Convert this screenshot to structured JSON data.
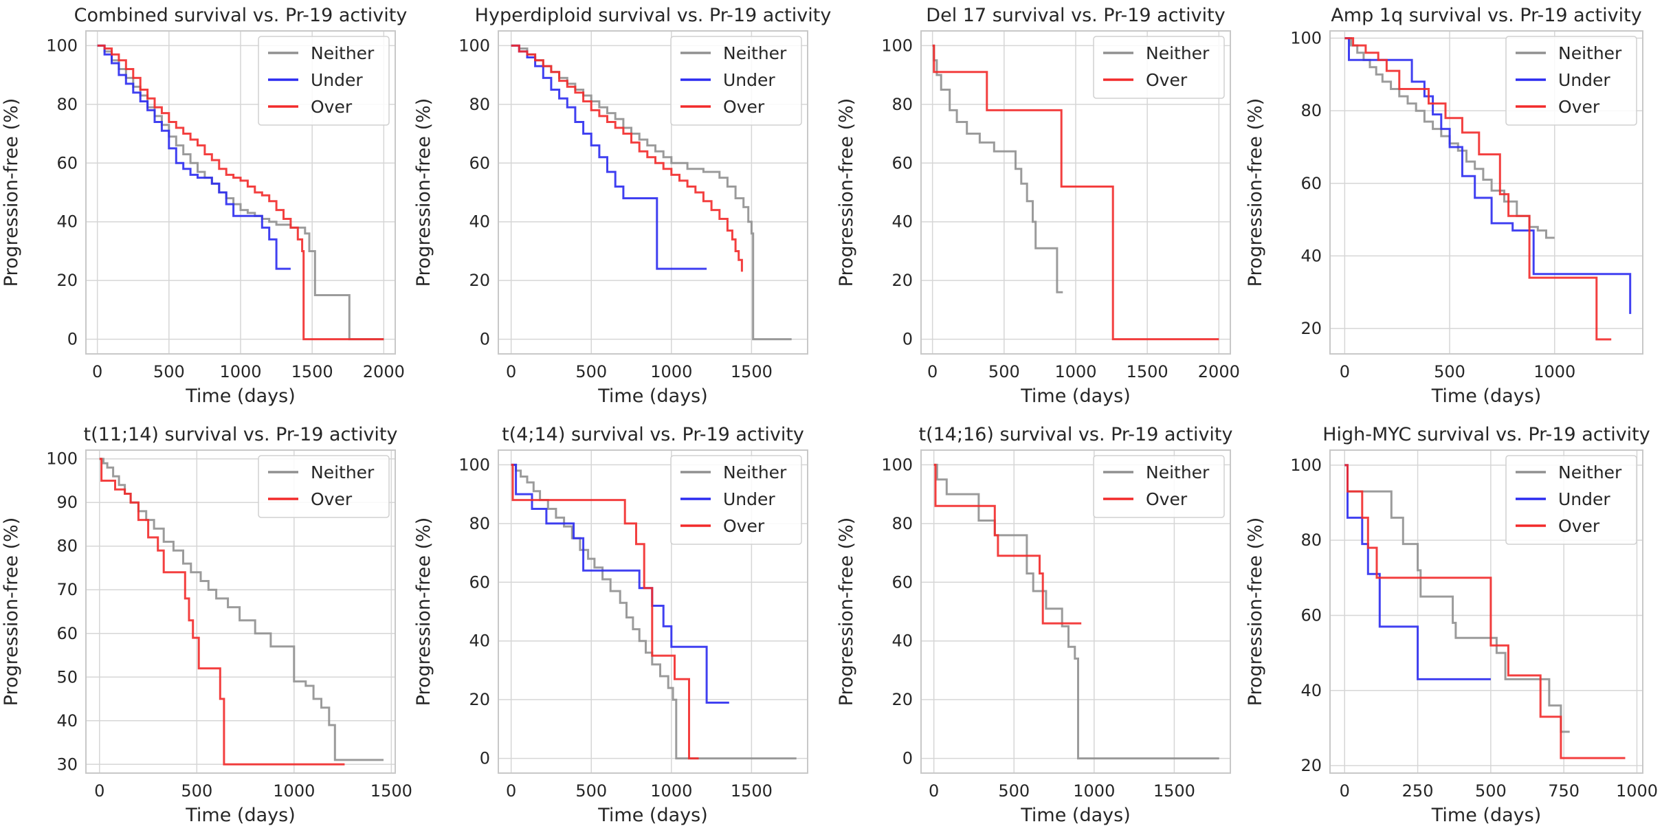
{
  "figure": {
    "colors": {
      "Neither": "#909090",
      "Under": "#2b2bf0",
      "Over": "#f22a2a",
      "grid": "#d6d6d6",
      "frame": "#c8c8c8"
    }
  },
  "chart_data": [
    {
      "type": "line",
      "title": "Combined survival vs. Pr-19 activity",
      "xlabel": "Time (days)",
      "ylabel": "Progression-free (%)",
      "xlim": [
        -80,
        2080
      ],
      "ylim": [
        -5,
        105
      ],
      "xticks": [
        0,
        500,
        1000,
        1500,
        2000
      ],
      "yticks": [
        0,
        20,
        40,
        60,
        80,
        100
      ],
      "legend": "top-right",
      "series": [
        {
          "name": "Neither",
          "x": [
            0,
            50,
            100,
            150,
            200,
            250,
            300,
            350,
            400,
            450,
            500,
            550,
            600,
            650,
            700,
            750,
            800,
            850,
            900,
            950,
            1000,
            1050,
            1100,
            1150,
            1200,
            1250,
            1300,
            1350,
            1400,
            1450,
            1480,
            1520,
            1750,
            1760,
            2000
          ],
          "y": [
            100,
            98,
            95,
            92,
            89,
            86,
            83,
            79,
            76,
            73,
            69,
            66,
            63,
            60,
            57,
            55,
            53,
            50,
            48,
            46,
            44,
            43,
            42,
            41,
            40,
            39,
            39,
            38,
            38,
            36,
            30,
            15,
            15,
            0,
            0
          ]
        },
        {
          "name": "Under",
          "x": [
            0,
            50,
            100,
            150,
            200,
            250,
            300,
            350,
            400,
            450,
            500,
            550,
            600,
            650,
            700,
            800,
            850,
            900,
            950,
            1000,
            1100,
            1150,
            1200,
            1250,
            1350
          ],
          "y": [
            100,
            97,
            94,
            90,
            87,
            84,
            81,
            78,
            74,
            71,
            65,
            60,
            58,
            56,
            55,
            53,
            50,
            46,
            42,
            42,
            42,
            38,
            34,
            24,
            24
          ]
        },
        {
          "name": "Over",
          "x": [
            0,
            50,
            100,
            150,
            200,
            250,
            300,
            350,
            400,
            450,
            500,
            550,
            600,
            650,
            700,
            750,
            800,
            850,
            900,
            950,
            1000,
            1050,
            1100,
            1150,
            1200,
            1250,
            1300,
            1350,
            1400,
            1430,
            1440,
            2000
          ],
          "y": [
            100,
            99,
            97,
            95,
            92,
            89,
            85,
            82,
            79,
            77,
            74,
            72,
            70,
            68,
            66,
            63,
            61,
            58,
            56,
            55,
            54,
            52,
            50,
            49,
            47,
            44,
            41,
            38,
            34,
            30,
            0,
            0
          ]
        }
      ]
    },
    {
      "type": "line",
      "title": "Hyperdiploid survival vs. Pr-19 activity",
      "xlabel": "Time (days)",
      "ylabel": "Progression-free (%)",
      "xlim": [
        -80,
        1850
      ],
      "ylim": [
        -5,
        105
      ],
      "xticks": [
        0,
        500,
        1000,
        1500
      ],
      "yticks": [
        0,
        20,
        40,
        60,
        80,
        100
      ],
      "legend": "top-right",
      "series": [
        {
          "name": "Neither",
          "x": [
            0,
            50,
            100,
            150,
            200,
            250,
            300,
            350,
            400,
            450,
            500,
            550,
            600,
            650,
            700,
            750,
            800,
            850,
            900,
            950,
            1000,
            1100,
            1200,
            1300,
            1350,
            1400,
            1450,
            1480,
            1500,
            1510,
            1750
          ],
          "y": [
            100,
            99,
            97,
            95,
            93,
            91,
            89,
            87,
            85,
            83,
            81,
            79,
            77,
            75,
            72,
            70,
            68,
            66,
            64,
            62,
            60,
            58,
            57,
            55,
            52,
            48,
            45,
            40,
            36,
            0,
            0
          ]
        },
        {
          "name": "Under",
          "x": [
            0,
            50,
            100,
            150,
            200,
            250,
            300,
            350,
            400,
            450,
            500,
            550,
            600,
            650,
            700,
            900,
            910,
            1220
          ],
          "y": [
            100,
            98,
            96,
            93,
            89,
            85,
            82,
            79,
            74,
            70,
            66,
            62,
            57,
            52,
            48,
            48,
            24,
            24
          ]
        },
        {
          "name": "Over",
          "x": [
            0,
            50,
            100,
            150,
            200,
            250,
            300,
            350,
            400,
            450,
            500,
            550,
            600,
            650,
            700,
            750,
            800,
            850,
            900,
            950,
            1000,
            1050,
            1100,
            1150,
            1200,
            1250,
            1300,
            1350,
            1380,
            1400,
            1420,
            1440
          ],
          "y": [
            100,
            98,
            97,
            95,
            93,
            91,
            88,
            86,
            84,
            81,
            78,
            76,
            74,
            72,
            70,
            67,
            64,
            62,
            60,
            58,
            56,
            54,
            52,
            50,
            47,
            44,
            41,
            37,
            34,
            30,
            27,
            23
          ]
        }
      ]
    },
    {
      "type": "line",
      "title": "Del 17 survival vs. Pr-19 activity",
      "xlabel": "Time (days)",
      "ylabel": "Progression-free (%)",
      "xlim": [
        -80,
        2080
      ],
      "ylim": [
        -5,
        105
      ],
      "xticks": [
        0,
        500,
        1000,
        1500,
        2000
      ],
      "yticks": [
        0,
        20,
        40,
        60,
        80,
        100
      ],
      "legend": "top-right",
      "series": [
        {
          "name": "Neither",
          "x": [
            0,
            10,
            30,
            60,
            120,
            170,
            240,
            330,
            430,
            550,
            580,
            620,
            660,
            700,
            720,
            870,
            910
          ],
          "y": [
            100,
            95,
            90,
            85,
            78,
            74,
            70,
            67,
            64,
            64,
            58,
            53,
            47,
            40,
            31,
            16,
            16
          ]
        },
        {
          "name": "Over",
          "x": [
            0,
            10,
            380,
            900,
            1250,
            1260,
            2000
          ],
          "y": [
            100,
            91,
            78,
            52,
            52,
            0,
            0
          ]
        }
      ]
    },
    {
      "type": "line",
      "title": "Amp 1q survival vs. Pr-19 activity",
      "xlabel": "Time (days)",
      "ylabel": "Progression-free (%)",
      "xlim": [
        -70,
        1420
      ],
      "ylim": [
        13,
        102
      ],
      "xticks": [
        0,
        500,
        1000
      ],
      "yticks": [
        20,
        40,
        60,
        80,
        100
      ],
      "legend": "top-right",
      "series": [
        {
          "name": "Neither",
          "x": [
            0,
            30,
            60,
            90,
            120,
            150,
            180,
            220,
            260,
            300,
            340,
            380,
            420,
            460,
            500,
            540,
            580,
            620,
            660,
            700,
            760,
            820,
            880,
            920,
            960,
            1000
          ],
          "y": [
            100,
            98,
            96,
            94,
            92,
            90,
            88,
            86,
            84,
            82,
            80,
            77,
            75,
            73,
            71,
            69,
            66,
            64,
            61,
            58,
            55,
            51,
            48,
            47,
            45,
            45
          ]
        },
        {
          "name": "Under",
          "x": [
            0,
            20,
            60,
            320,
            380,
            420,
            460,
            500,
            560,
            620,
            700,
            800,
            900,
            1360
          ],
          "y": [
            100,
            94,
            94,
            88,
            84,
            79,
            75,
            70,
            62,
            56,
            49,
            47,
            35,
            24
          ]
        },
        {
          "name": "Over",
          "x": [
            0,
            40,
            100,
            160,
            200,
            260,
            350,
            400,
            480,
            560,
            640,
            740,
            780,
            880,
            1200,
            1270
          ],
          "y": [
            100,
            98,
            96,
            94,
            91,
            86,
            86,
            82,
            78,
            74,
            68,
            57,
            51,
            34,
            17,
            17
          ]
        }
      ]
    },
    {
      "type": "line",
      "title": "t(11;14) survival vs. Pr-19 activity",
      "xlabel": "Time (days)",
      "ylabel": "Progression-free (%)",
      "xlim": [
        -70,
        1520
      ],
      "ylim": [
        28,
        102
      ],
      "xticks": [
        0,
        500,
        1000,
        1500
      ],
      "yticks": [
        30,
        40,
        50,
        60,
        70,
        80,
        90,
        100
      ],
      "legend": "top-right",
      "series": [
        {
          "name": "Neither",
          "x": [
            0,
            20,
            40,
            70,
            100,
            130,
            160,
            200,
            240,
            280,
            330,
            380,
            430,
            470,
            520,
            560,
            600,
            660,
            720,
            800,
            880,
            1000,
            1060,
            1100,
            1140,
            1180,
            1210,
            1460
          ],
          "y": [
            100,
            99,
            98,
            96,
            94,
            92,
            90,
            88,
            86,
            84,
            81,
            79,
            76,
            74,
            72,
            70,
            68,
            66,
            63,
            60,
            57,
            49,
            48,
            45,
            43,
            39,
            31,
            31
          ]
        },
        {
          "name": "Over",
          "x": [
            0,
            10,
            80,
            130,
            160,
            200,
            250,
            280,
            300,
            330,
            380,
            440,
            460,
            480,
            510,
            550,
            620,
            640,
            1260
          ],
          "y": [
            100,
            95,
            93,
            92,
            90,
            86,
            82,
            82,
            79,
            74,
            74,
            68,
            63,
            59,
            52,
            52,
            45,
            30,
            30
          ]
        }
      ]
    },
    {
      "type": "line",
      "title": "t(4;14) survival vs. Pr-19 activity",
      "xlabel": "Time (days)",
      "ylabel": "Progression-free (%)",
      "xlim": [
        -80,
        1850
      ],
      "ylim": [
        -5,
        105
      ],
      "xticks": [
        0,
        500,
        1000,
        1500
      ],
      "yticks": [
        0,
        20,
        40,
        60,
        80,
        100
      ],
      "legend": "top-right",
      "series": [
        {
          "name": "Neither",
          "x": [
            0,
            30,
            60,
            100,
            140,
            180,
            230,
            280,
            330,
            380,
            430,
            480,
            520,
            570,
            620,
            680,
            720,
            760,
            800,
            840,
            880,
            930,
            980,
            1010,
            1030,
            1780
          ],
          "y": [
            100,
            98,
            96,
            94,
            91,
            88,
            85,
            82,
            79,
            75,
            71,
            68,
            65,
            61,
            57,
            53,
            48,
            44,
            40,
            36,
            32,
            28,
            24,
            20,
            0,
            0
          ]
        },
        {
          "name": "Under",
          "x": [
            0,
            30,
            130,
            220,
            390,
            450,
            800,
            880,
            950,
            1000,
            1200,
            1220,
            1360
          ],
          "y": [
            100,
            90,
            85,
            80,
            75,
            64,
            58,
            52,
            45,
            38,
            38,
            19,
            19
          ]
        },
        {
          "name": "Over",
          "x": [
            0,
            10,
            710,
            780,
            830,
            880,
            1020,
            1110,
            1120,
            1170
          ],
          "y": [
            100,
            88,
            80,
            73,
            58,
            35,
            27,
            0,
            0,
            0
          ]
        }
      ]
    },
    {
      "type": "line",
      "title": "t(14;16) survival vs. Pr-19 activity",
      "xlabel": "Time (days)",
      "ylabel": "Progression-free (%)",
      "xlim": [
        -80,
        1850
      ],
      "ylim": [
        -5,
        105
      ],
      "xticks": [
        0,
        500,
        1000,
        1500
      ],
      "yticks": [
        0,
        20,
        40,
        60,
        80,
        100
      ],
      "legend": "top-right",
      "series": [
        {
          "name": "Neither",
          "x": [
            0,
            20,
            80,
            280,
            380,
            460,
            580,
            620,
            700,
            800,
            840,
            880,
            900,
            1780
          ],
          "y": [
            100,
            95,
            90,
            81,
            76,
            76,
            63,
            57,
            51,
            45,
            38,
            34,
            0,
            0
          ]
        },
        {
          "name": "Over",
          "x": [
            0,
            10,
            380,
            400,
            660,
            680,
            920
          ],
          "y": [
            100,
            86,
            76,
            69,
            63,
            46,
            46
          ]
        }
      ]
    },
    {
      "type": "line",
      "title": "High-MYC survival vs. Pr-19 activity",
      "xlabel": "Time (days)",
      "ylabel": "Progression-free (%)",
      "xlim": [
        -50,
        1020
      ],
      "ylim": [
        18,
        104
      ],
      "xticks": [
        0,
        250,
        500,
        750,
        1000
      ],
      "yticks": [
        20,
        40,
        60,
        80,
        100
      ],
      "legend": "top-right",
      "series": [
        {
          "name": "Neither",
          "x": [
            0,
            10,
            120,
            160,
            200,
            250,
            260,
            370,
            380,
            520,
            550,
            640,
            670,
            700,
            720,
            740,
            770
          ],
          "y": [
            100,
            93,
            93,
            86,
            79,
            72,
            65,
            58,
            54,
            50,
            43,
            43,
            43,
            36,
            36,
            29,
            29
          ]
        },
        {
          "name": "Under",
          "x": [
            0,
            10,
            60,
            80,
            120,
            250,
            280,
            500
          ],
          "y": [
            100,
            86,
            79,
            71,
            57,
            43,
            43,
            43
          ]
        },
        {
          "name": "Over",
          "x": [
            0,
            10,
            60,
            80,
            110,
            480,
            500,
            560,
            670,
            740,
            960
          ],
          "y": [
            100,
            93,
            86,
            78,
            70,
            70,
            52,
            44,
            33,
            22,
            22
          ]
        }
      ]
    }
  ]
}
